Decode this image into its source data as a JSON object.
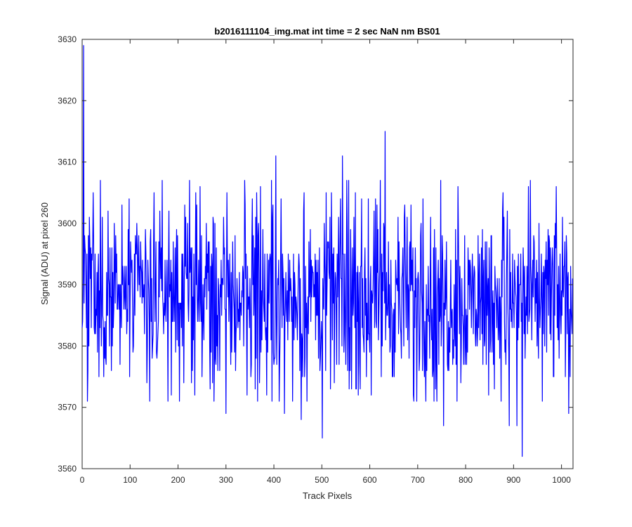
{
  "chart_data": {
    "type": "line",
    "title": "b2016111104_img.mat int time = 2 sec  NaN nm BS01",
    "xlabel": "Track Pixels",
    "ylabel": "Signal (ADU) at pixel 260",
    "xlim": [
      0,
      1024
    ],
    "ylim": [
      3560,
      3630
    ],
    "xticks": [
      0,
      100,
      200,
      300,
      400,
      500,
      600,
      700,
      800,
      900,
      1000
    ],
    "yticks": [
      3560,
      3570,
      3580,
      3590,
      3600,
      3610,
      3620,
      3630
    ],
    "grid": false,
    "legend": "none",
    "series": [
      {
        "color": "#0000ff",
        "signal_summary": {
          "points": 1024,
          "baseline": 3588,
          "typical_range": [
            3573,
            3603
          ],
          "peaks": [
            [
              3,
              3629
            ],
            [
              632,
              3615
            ],
            [
              404,
              3611
            ],
            [
              167,
              3607
            ],
            [
              150,
              3605
            ],
            [
              543,
              3611
            ]
          ],
          "troughs": [
            [
              918,
              3562
            ],
            [
              501,
              3565
            ],
            [
              891,
              3567
            ],
            [
              907,
              3567
            ],
            [
              754,
              3567
            ],
            [
              457,
              3568
            ],
            [
              300,
              3569
            ],
            [
              422,
              3569
            ],
            [
              1015,
              3569
            ]
          ]
        }
      }
    ]
  }
}
